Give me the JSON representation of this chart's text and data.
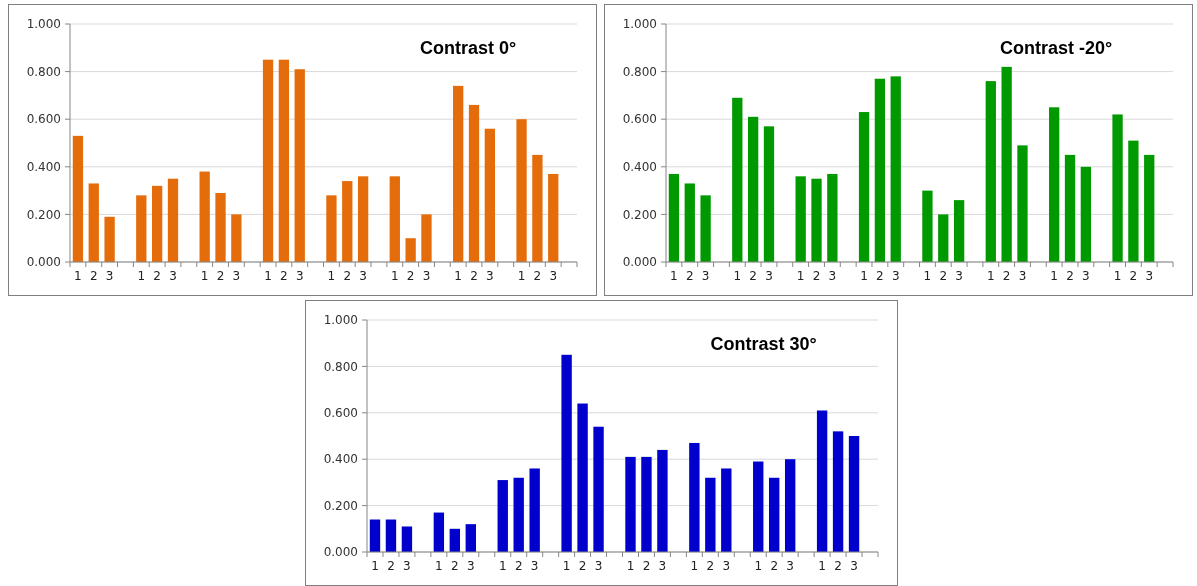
{
  "chart_data": [
    {
      "type": "bar",
      "title": "Contrast  0°",
      "categories": [
        "1",
        "2",
        "3",
        null,
        "1",
        "2",
        "3",
        null,
        "1",
        "2",
        "3",
        null,
        "1",
        "2",
        "3",
        null,
        "1",
        "2",
        "3",
        null,
        "1",
        "2",
        "3",
        null,
        "1",
        "2",
        "3",
        null,
        "1",
        "2",
        "3",
        null
      ],
      "values": [
        0.53,
        0.33,
        0.19,
        null,
        0.28,
        0.32,
        0.35,
        null,
        0.38,
        0.29,
        0.2,
        null,
        0.85,
        0.85,
        0.81,
        null,
        0.28,
        0.34,
        0.36,
        null,
        0.36,
        0.1,
        0.2,
        null,
        0.74,
        0.66,
        0.56,
        null,
        0.6,
        0.45,
        0.37,
        null
      ],
      "color": "#e46c0a",
      "ylim": [
        0,
        1
      ],
      "yticks": [
        {
          "value": 0,
          "label": "0.000"
        },
        {
          "value": 0.2,
          "label": "0.200"
        },
        {
          "value": 0.4,
          "label": "0.400"
        },
        {
          "value": 0.6,
          "label": "0.600"
        },
        {
          "value": 0.8,
          "label": "0.800"
        },
        {
          "value": 1,
          "label": "1.000"
        }
      ],
      "grid": "y"
    },
    {
      "type": "bar",
      "title": "Contrast  -20°",
      "categories": [
        "1",
        "2",
        "3",
        null,
        "1",
        "2",
        "3",
        null,
        "1",
        "2",
        "3",
        null,
        "1",
        "2",
        "3",
        null,
        "1",
        "2",
        "3",
        null,
        "1",
        "2",
        "3",
        null,
        "1",
        "2",
        "3",
        null,
        "1",
        "2",
        "3",
        null
      ],
      "values": [
        0.37,
        0.33,
        0.28,
        null,
        0.69,
        0.61,
        0.57,
        null,
        0.36,
        0.35,
        0.37,
        null,
        0.63,
        0.77,
        0.78,
        null,
        0.3,
        0.2,
        0.26,
        null,
        0.76,
        0.82,
        0.49,
        null,
        0.65,
        0.45,
        0.4,
        null,
        0.62,
        0.51,
        0.45,
        null
      ],
      "color": "#009900",
      "ylim": [
        0,
        1
      ],
      "yticks": [
        {
          "value": 0,
          "label": "0.000"
        },
        {
          "value": 0.2,
          "label": "0.200"
        },
        {
          "value": 0.4,
          "label": "0.400"
        },
        {
          "value": 0.6,
          "label": "0.600"
        },
        {
          "value": 0.8,
          "label": "0.800"
        },
        {
          "value": 1,
          "label": "1.000"
        }
      ],
      "grid": "y"
    },
    {
      "type": "bar",
      "title": "Contrast  30°",
      "categories": [
        "1",
        "2",
        "3",
        null,
        "1",
        "2",
        "3",
        null,
        "1",
        "2",
        "3",
        null,
        "1",
        "2",
        "3",
        null,
        "1",
        "2",
        "3",
        null,
        "1",
        "2",
        "3",
        null,
        "1",
        "2",
        "3",
        null,
        "1",
        "2",
        "3",
        null
      ],
      "values": [
        0.14,
        0.14,
        0.11,
        null,
        0.17,
        0.1,
        0.12,
        null,
        0.31,
        0.32,
        0.36,
        null,
        0.85,
        0.64,
        0.54,
        null,
        0.41,
        0.41,
        0.44,
        null,
        0.47,
        0.32,
        0.36,
        null,
        0.39,
        0.32,
        0.4,
        null,
        0.61,
        0.52,
        0.5,
        null
      ],
      "color": "#0000cc",
      "ylim": [
        0,
        1
      ],
      "yticks": [
        {
          "value": 0,
          "label": "0.000"
        },
        {
          "value": 0.2,
          "label": "0.200"
        },
        {
          "value": 0.4,
          "label": "0.400"
        },
        {
          "value": 0.6,
          "label": "0.600"
        },
        {
          "value": 0.8,
          "label": "0.800"
        },
        {
          "value": 1,
          "label": "1.000"
        }
      ],
      "grid": "y"
    }
  ]
}
